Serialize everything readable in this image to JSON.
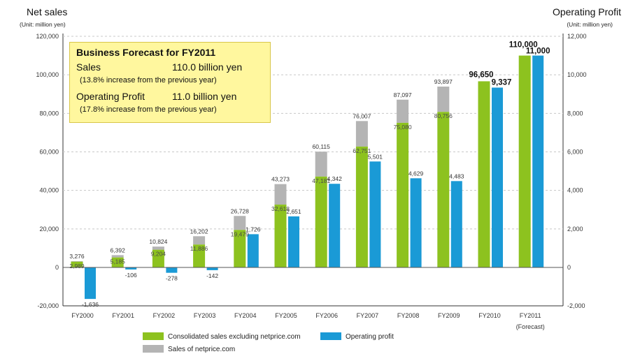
{
  "chart_data": {
    "type": "bar",
    "title": "",
    "categories": [
      "FY2000",
      "FY2001",
      "FY2002",
      "FY2003",
      "FY2004",
      "FY2005",
      "FY2006",
      "FY2007",
      "FY2008",
      "FY2009",
      "FY2010",
      "FY2011"
    ],
    "category_notes": [
      "",
      "",
      "",
      "",
      "",
      "",
      "",
      "",
      "",
      "",
      "",
      "(Forecast)"
    ],
    "left_axis": {
      "title": "Net sales",
      "unit": "(Unit: million yen)",
      "min": -20000,
      "max": 120000,
      "ticks": [
        -20000,
        0,
        20000,
        40000,
        60000,
        80000,
        100000,
        120000
      ],
      "tick_labels": [
        "-20,000",
        "0",
        "20,000",
        "40,000",
        "60,000",
        "80,000",
        "100,000",
        "120,000"
      ]
    },
    "right_axis": {
      "title": "Operating Profit",
      "unit": "(Unit: million yen)",
      "min": -2000,
      "max": 12000,
      "ticks": [
        -2000,
        0,
        2000,
        4000,
        6000,
        8000,
        10000,
        12000
      ],
      "tick_labels": [
        "-2,000",
        "0",
        "2,000",
        "4,000",
        "6,000",
        "8,000",
        "10,000",
        "12,000"
      ]
    },
    "grid": "dashed-horizontal",
    "series": [
      {
        "name": "Consolidated sales excluding netprice.com",
        "axis": "left",
        "color": "#8dc21f",
        "values": [
          2989,
          5185,
          9204,
          11886,
          19479,
          32618,
          47181,
          62751,
          75080,
          80756,
          96650,
          110000
        ],
        "labels": [
          "2,989",
          "5,185",
          "9,204",
          "11,886",
          "19,479",
          "32,618",
          "47,181",
          "62,751",
          "75,080",
          "80,756",
          "",
          ""
        ]
      },
      {
        "name": "Sales of netprice.com",
        "axis": "left",
        "color": "#b4b4b4",
        "values": [
          3276,
          6392,
          10824,
          16202,
          26728,
          43273,
          60115,
          76007,
          87097,
          93897,
          null,
          null
        ],
        "labels": [
          "3,276",
          "6,392",
          "10,824",
          "16,202",
          "26,728",
          "43,273",
          "60,115",
          "76,007",
          "87,097",
          "93,897",
          "",
          ""
        ]
      },
      {
        "name": "Operating profit",
        "axis": "right",
        "color": "#1a9ad6",
        "values": [
          -1636,
          -106,
          -278,
          -142,
          1726,
          2651,
          4342,
          5501,
          4629,
          4483,
          9337,
          11000
        ],
        "labels": [
          "-1,636",
          "-106",
          "-278",
          "-142",
          "1,726",
          "2,651",
          "4,342",
          "5,501",
          "4,629",
          "4,483",
          "9,337",
          "11,000"
        ]
      }
    ],
    "highlight_labels": {
      "FY2010": {
        "sales": "96,650",
        "profit": "9,337"
      },
      "FY2011": {
        "sales": "110,000",
        "profit": "11,000"
      }
    },
    "legend": {
      "placement": "bottom-center",
      "order": [
        "Consolidated sales excluding netprice.com",
        "Operating profit",
        "Sales of netprice.com"
      ]
    }
  },
  "forecast_box": {
    "title": "Business Forecast for FY2011",
    "sales_label": "Sales",
    "sales_value": "110.0 billion yen",
    "sales_note": "(13.8% increase from the previous year)",
    "profit_label": "Operating Profit",
    "profit_value": "11.0 billion yen",
    "profit_note": "(17.8% increase from the previous year)"
  }
}
